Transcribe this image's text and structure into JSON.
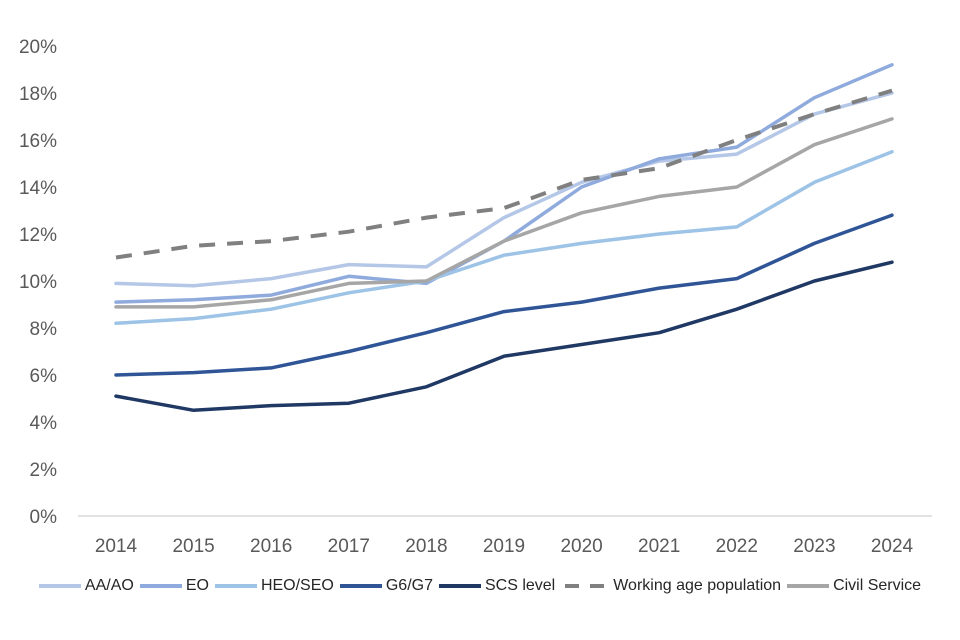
{
  "chart_data": {
    "type": "line",
    "title": "",
    "xlabel": "",
    "ylabel": "",
    "x": [
      "2014",
      "2015",
      "2016",
      "2017",
      "2018",
      "2019",
      "2020",
      "2021",
      "2022",
      "2023",
      "2024"
    ],
    "ylim": [
      0,
      20
    ],
    "yticks": [
      "0%",
      "2%",
      "4%",
      "6%",
      "8%",
      "10%",
      "12%",
      "14%",
      "16%",
      "18%",
      "20%"
    ],
    "ytick_values": [
      0,
      2,
      4,
      6,
      8,
      10,
      12,
      14,
      16,
      18,
      20
    ],
    "grid": false,
    "legend_position": "bottom",
    "series": [
      {
        "name": "AA/AO",
        "color": "#b4c7e7",
        "dashed": false,
        "values": [
          9.9,
          9.8,
          10.1,
          10.7,
          10.6,
          12.7,
          14.2,
          15.1,
          15.4,
          17.1,
          18.0
        ]
      },
      {
        "name": "EO",
        "color": "#8faadc",
        "dashed": false,
        "values": [
          9.1,
          9.2,
          9.4,
          10.2,
          9.9,
          11.7,
          14.0,
          15.2,
          15.7,
          17.8,
          19.2
        ]
      },
      {
        "name": "HEO/SEO",
        "color": "#9dc3e6",
        "dashed": false,
        "values": [
          8.2,
          8.4,
          8.8,
          9.5,
          10.0,
          11.1,
          11.6,
          12.0,
          12.3,
          14.2,
          15.5
        ]
      },
      {
        "name": "G6/G7",
        "color": "#2f5597",
        "dashed": false,
        "values": [
          6.0,
          6.1,
          6.3,
          7.0,
          7.8,
          8.7,
          9.1,
          9.7,
          10.1,
          11.6,
          12.8
        ]
      },
      {
        "name": "SCS level",
        "color": "#1f3864",
        "dashed": false,
        "values": [
          5.1,
          4.5,
          4.7,
          4.8,
          5.5,
          6.8,
          7.3,
          7.8,
          8.8,
          10.0,
          10.8
        ]
      },
      {
        "name": "Working age population",
        "color": "#808080",
        "dashed": true,
        "values": [
          11.0,
          11.5,
          11.7,
          12.1,
          12.7,
          13.1,
          14.3,
          14.8,
          16.0,
          17.1,
          18.1
        ]
      },
      {
        "name": "Civil Service",
        "color": "#a6a6a6",
        "dashed": false,
        "values": [
          8.9,
          8.9,
          9.2,
          9.9,
          10.0,
          11.7,
          12.9,
          13.6,
          14.0,
          15.8,
          16.9
        ]
      }
    ]
  }
}
